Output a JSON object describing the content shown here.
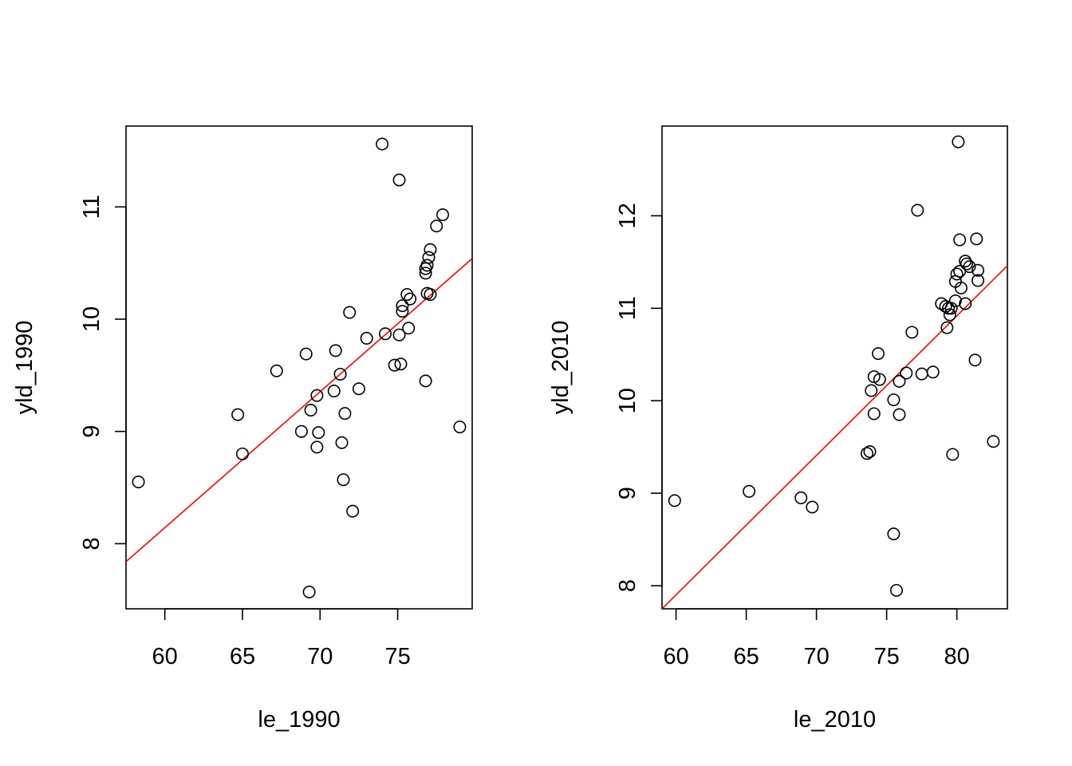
{
  "chart_data": [
    {
      "type": "scatter",
      "title": "",
      "xlabel": "le_1990",
      "ylabel": "yld_1990",
      "xlim": [
        57.5,
        79.8
      ],
      "ylim": [
        7.42,
        11.72
      ],
      "xticks": [
        60,
        65,
        70,
        75
      ],
      "yticks": [
        8,
        9,
        10,
        11
      ],
      "grid": false,
      "regression_line": {
        "color": "#ff0000",
        "x": [
          57.5,
          79.8
        ],
        "y": [
          7.84,
          10.54
        ]
      },
      "points": [
        {
          "x": 58.3,
          "y": 8.55
        },
        {
          "x": 64.7,
          "y": 9.15
        },
        {
          "x": 65.0,
          "y": 8.8
        },
        {
          "x": 67.2,
          "y": 9.54
        },
        {
          "x": 68.8,
          "y": 9.0
        },
        {
          "x": 69.1,
          "y": 9.69
        },
        {
          "x": 69.3,
          "y": 7.57
        },
        {
          "x": 69.4,
          "y": 9.19
        },
        {
          "x": 69.8,
          "y": 9.32
        },
        {
          "x": 69.8,
          "y": 8.86
        },
        {
          "x": 69.9,
          "y": 8.99
        },
        {
          "x": 70.9,
          "y": 9.36
        },
        {
          "x": 71.0,
          "y": 9.72
        },
        {
          "x": 71.3,
          "y": 9.51
        },
        {
          "x": 71.4,
          "y": 8.9
        },
        {
          "x": 71.5,
          "y": 8.57
        },
        {
          "x": 71.6,
          "y": 9.16
        },
        {
          "x": 71.9,
          "y": 10.06
        },
        {
          "x": 72.1,
          "y": 8.29
        },
        {
          "x": 72.5,
          "y": 9.38
        },
        {
          "x": 73.0,
          "y": 9.83
        },
        {
          "x": 74.0,
          "y": 11.56
        },
        {
          "x": 74.2,
          "y": 9.87
        },
        {
          "x": 74.8,
          "y": 9.59
        },
        {
          "x": 75.1,
          "y": 11.24
        },
        {
          "x": 75.1,
          "y": 9.86
        },
        {
          "x": 75.2,
          "y": 9.6
        },
        {
          "x": 75.3,
          "y": 10.12
        },
        {
          "x": 75.3,
          "y": 10.07
        },
        {
          "x": 75.6,
          "y": 10.22
        },
        {
          "x": 75.7,
          "y": 9.92
        },
        {
          "x": 75.8,
          "y": 10.18
        },
        {
          "x": 76.8,
          "y": 10.45
        },
        {
          "x": 76.8,
          "y": 10.41
        },
        {
          "x": 76.8,
          "y": 9.45
        },
        {
          "x": 76.9,
          "y": 10.23
        },
        {
          "x": 76.9,
          "y": 10.48
        },
        {
          "x": 77.0,
          "y": 10.55
        },
        {
          "x": 77.1,
          "y": 10.62
        },
        {
          "x": 77.1,
          "y": 10.22
        },
        {
          "x": 77.5,
          "y": 10.83
        },
        {
          "x": 77.9,
          "y": 10.93
        },
        {
          "x": 79.0,
          "y": 9.04
        }
      ]
    },
    {
      "type": "scatter",
      "title": "",
      "xlabel": "le_2010",
      "ylabel": "yld_2010",
      "xlim": [
        59.0,
        83.6
      ],
      "ylim": [
        7.75,
        12.97
      ],
      "xticks": [
        60,
        65,
        70,
        75,
        80
      ],
      "yticks": [
        8,
        9,
        10,
        11,
        12
      ],
      "grid": false,
      "regression_line": {
        "color": "#ff0000",
        "x": [
          59.0,
          83.6
        ],
        "y": [
          7.75,
          11.46
        ]
      },
      "points": [
        {
          "x": 59.9,
          "y": 8.92
        },
        {
          "x": 65.2,
          "y": 9.02
        },
        {
          "x": 68.9,
          "y": 8.95
        },
        {
          "x": 69.7,
          "y": 8.85
        },
        {
          "x": 73.6,
          "y": 9.43
        },
        {
          "x": 73.8,
          "y": 9.45
        },
        {
          "x": 73.9,
          "y": 10.11
        },
        {
          "x": 74.1,
          "y": 10.26
        },
        {
          "x": 74.1,
          "y": 9.86
        },
        {
          "x": 74.4,
          "y": 10.51
        },
        {
          "x": 74.5,
          "y": 10.23
        },
        {
          "x": 75.5,
          "y": 10.01
        },
        {
          "x": 75.5,
          "y": 8.56
        },
        {
          "x": 75.7,
          "y": 7.95
        },
        {
          "x": 75.9,
          "y": 10.21
        },
        {
          "x": 75.9,
          "y": 9.85
        },
        {
          "x": 76.4,
          "y": 10.3
        },
        {
          "x": 76.8,
          "y": 10.74
        },
        {
          "x": 77.2,
          "y": 12.06
        },
        {
          "x": 77.5,
          "y": 10.29
        },
        {
          "x": 78.3,
          "y": 10.31
        },
        {
          "x": 78.9,
          "y": 11.05
        },
        {
          "x": 79.2,
          "y": 11.02
        },
        {
          "x": 79.3,
          "y": 10.79
        },
        {
          "x": 79.4,
          "y": 11.0
        },
        {
          "x": 79.5,
          "y": 10.93
        },
        {
          "x": 79.6,
          "y": 11.0
        },
        {
          "x": 79.7,
          "y": 9.42
        },
        {
          "x": 79.9,
          "y": 11.08
        },
        {
          "x": 79.9,
          "y": 11.29
        },
        {
          "x": 80.0,
          "y": 11.37
        },
        {
          "x": 80.1,
          "y": 12.8
        },
        {
          "x": 80.2,
          "y": 11.74
        },
        {
          "x": 80.2,
          "y": 11.4
        },
        {
          "x": 80.3,
          "y": 11.22
        },
        {
          "x": 80.6,
          "y": 11.51
        },
        {
          "x": 80.6,
          "y": 11.05
        },
        {
          "x": 80.7,
          "y": 11.48
        },
        {
          "x": 80.9,
          "y": 11.45
        },
        {
          "x": 81.3,
          "y": 10.44
        },
        {
          "x": 81.4,
          "y": 11.75
        },
        {
          "x": 81.5,
          "y": 11.3
        },
        {
          "x": 81.5,
          "y": 11.41
        },
        {
          "x": 82.6,
          "y": 9.56
        }
      ]
    }
  ]
}
